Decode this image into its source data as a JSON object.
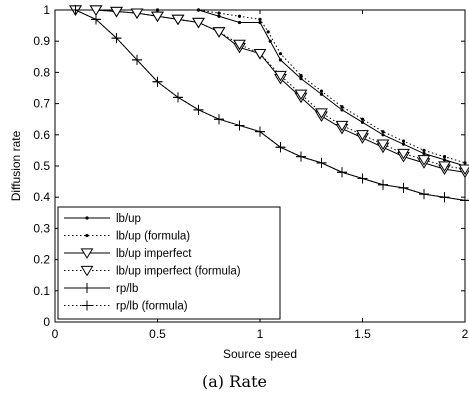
{
  "caption": "(a) Rate",
  "chart_data": {
    "type": "line",
    "title": "",
    "xlabel": "Source speed",
    "ylabel": "Diffusion rate",
    "xlim": [
      0,
      2
    ],
    "ylim": [
      0,
      1
    ],
    "xticks": [
      "0",
      "0.5",
      "1",
      "1.5",
      "2"
    ],
    "yticks": [
      "0",
      "0.1",
      "0.2",
      "0.3",
      "0.4",
      "0.5",
      "0.6",
      "0.7",
      "0.8",
      "0.9",
      "1"
    ],
    "grid": false,
    "legend": "bottom-left",
    "colors": {
      "line": "#000000",
      "background": "#ffffff"
    },
    "series": [
      {
        "name": "lb/up",
        "style": "solid",
        "marker": "dot",
        "x": [
          0.1,
          0.3,
          0.5,
          0.7,
          0.8,
          0.9,
          1.0,
          1.05,
          1.1,
          1.2,
          1.3,
          1.4,
          1.5,
          1.6,
          1.7,
          1.8,
          1.9,
          2.0
        ],
        "y": [
          1.0,
          1.0,
          1.0,
          1.0,
          0.98,
          0.96,
          0.96,
          0.9,
          0.84,
          0.78,
          0.73,
          0.68,
          0.64,
          0.6,
          0.57,
          0.54,
          0.52,
          0.5
        ]
      },
      {
        "name": "lb/up (formula)",
        "style": "dotted",
        "marker": "dot",
        "x": [
          0.1,
          0.3,
          0.5,
          0.7,
          0.8,
          0.9,
          1.0,
          1.04,
          1.1,
          1.2,
          1.3,
          1.4,
          1.5,
          1.6,
          1.7,
          1.8,
          1.9,
          2.0
        ],
        "y": [
          1.0,
          1.0,
          1.0,
          1.0,
          0.99,
          0.98,
          0.97,
          0.93,
          0.86,
          0.79,
          0.74,
          0.69,
          0.65,
          0.61,
          0.58,
          0.55,
          0.53,
          0.51
        ]
      },
      {
        "name": "lb/up imperfect",
        "style": "solid",
        "marker": "triangle-down",
        "x": [
          0.1,
          0.2,
          0.3,
          0.4,
          0.5,
          0.6,
          0.7,
          0.8,
          0.9,
          1.0,
          1.1,
          1.2,
          1.3,
          1.4,
          1.5,
          1.6,
          1.7,
          1.8,
          1.9,
          2.0
        ],
        "y": [
          1.0,
          1.0,
          0.995,
          0.99,
          0.98,
          0.97,
          0.96,
          0.93,
          0.88,
          0.86,
          0.78,
          0.72,
          0.66,
          0.62,
          0.59,
          0.56,
          0.53,
          0.51,
          0.49,
          0.48
        ]
      },
      {
        "name": "lb/up imperfect (formula)",
        "style": "dotted",
        "marker": "triangle-down",
        "x": [
          0.1,
          0.2,
          0.3,
          0.4,
          0.5,
          0.6,
          0.7,
          0.8,
          0.9,
          1.0,
          1.1,
          1.2,
          1.3,
          1.4,
          1.5,
          1.6,
          1.7,
          1.8,
          1.9,
          2.0
        ],
        "y": [
          1.0,
          1.0,
          0.995,
          0.99,
          0.98,
          0.97,
          0.96,
          0.93,
          0.89,
          0.86,
          0.79,
          0.73,
          0.67,
          0.63,
          0.6,
          0.57,
          0.54,
          0.52,
          0.5,
          0.49
        ]
      },
      {
        "name": "rp/lb",
        "style": "solid",
        "marker": "plus",
        "x": [
          0.1,
          0.2,
          0.3,
          0.4,
          0.5,
          0.6,
          0.7,
          0.8,
          0.9,
          1.0,
          1.1,
          1.2,
          1.3,
          1.4,
          1.5,
          1.6,
          1.7,
          1.8,
          1.9,
          2.0
        ],
        "y": [
          1.0,
          0.97,
          0.91,
          0.84,
          0.77,
          0.72,
          0.68,
          0.65,
          0.63,
          0.61,
          0.56,
          0.53,
          0.51,
          0.48,
          0.46,
          0.44,
          0.43,
          0.41,
          0.4,
          0.39
        ]
      },
      {
        "name": "rp/lb (formula)",
        "style": "dotted",
        "marker": "plus",
        "x": [
          0.1,
          0.2,
          0.3,
          0.4,
          0.5,
          0.6,
          0.7,
          0.8,
          0.9,
          1.0,
          1.1,
          1.2,
          1.3,
          1.4,
          1.5,
          1.6,
          1.7,
          1.8,
          1.9,
          2.0
        ],
        "y": [
          1.0,
          0.97,
          0.91,
          0.84,
          0.77,
          0.72,
          0.68,
          0.65,
          0.63,
          0.61,
          0.56,
          0.53,
          0.51,
          0.48,
          0.46,
          0.44,
          0.43,
          0.41,
          0.4,
          0.39
        ]
      }
    ]
  }
}
